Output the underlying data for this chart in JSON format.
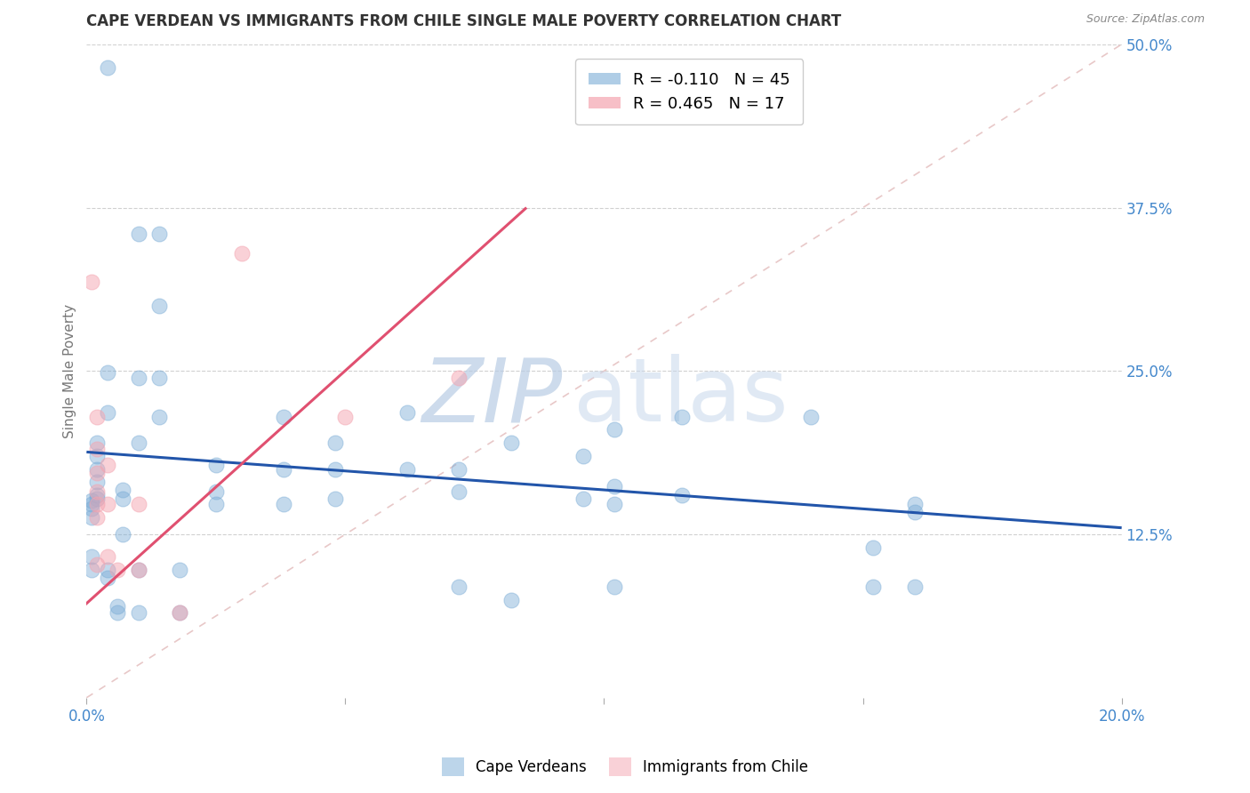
{
  "title": "CAPE VERDEAN VS IMMIGRANTS FROM CHILE SINGLE MALE POVERTY CORRELATION CHART",
  "source": "Source: ZipAtlas.com",
  "ylabel_label": "Single Male Poverty",
  "xlim": [
    0.0,
    0.2
  ],
  "ylim": [
    0.0,
    0.5
  ],
  "xtick_vals": [
    0.0,
    0.05,
    0.1,
    0.15,
    0.2
  ],
  "xtick_labels": [
    "0.0%",
    "",
    "",
    "",
    "20.0%"
  ],
  "ytick_vals": [
    0.125,
    0.25,
    0.375,
    0.5
  ],
  "ytick_labels": [
    "12.5%",
    "25.0%",
    "37.5%",
    "50.0%"
  ],
  "background_color": "#ffffff",
  "grid_color": "#cccccc",
  "diagonal_line_color": "#cccccc",
  "blue_scatter": [
    [
      0.004,
      0.482
    ],
    [
      0.01,
      0.355
    ],
    [
      0.01,
      0.245
    ],
    [
      0.01,
      0.195
    ],
    [
      0.014,
      0.355
    ],
    [
      0.014,
      0.245
    ],
    [
      0.014,
      0.3
    ],
    [
      0.014,
      0.215
    ],
    [
      0.004,
      0.249
    ],
    [
      0.004,
      0.218
    ],
    [
      0.002,
      0.195
    ],
    [
      0.002,
      0.185
    ],
    [
      0.002,
      0.175
    ],
    [
      0.002,
      0.165
    ],
    [
      0.002,
      0.155
    ],
    [
      0.002,
      0.152
    ],
    [
      0.001,
      0.151
    ],
    [
      0.001,
      0.148
    ],
    [
      0.001,
      0.145
    ],
    [
      0.001,
      0.138
    ],
    [
      0.001,
      0.108
    ],
    [
      0.001,
      0.098
    ],
    [
      0.004,
      0.098
    ],
    [
      0.004,
      0.092
    ],
    [
      0.006,
      0.07
    ],
    [
      0.006,
      0.065
    ],
    [
      0.007,
      0.159
    ],
    [
      0.007,
      0.152
    ],
    [
      0.007,
      0.125
    ],
    [
      0.01,
      0.098
    ],
    [
      0.01,
      0.065
    ],
    [
      0.018,
      0.098
    ],
    [
      0.018,
      0.065
    ],
    [
      0.025,
      0.178
    ],
    [
      0.025,
      0.158
    ],
    [
      0.025,
      0.148
    ],
    [
      0.038,
      0.215
    ],
    [
      0.038,
      0.175
    ],
    [
      0.038,
      0.148
    ],
    [
      0.048,
      0.195
    ],
    [
      0.048,
      0.175
    ],
    [
      0.048,
      0.152
    ],
    [
      0.062,
      0.218
    ],
    [
      0.062,
      0.175
    ],
    [
      0.072,
      0.175
    ],
    [
      0.072,
      0.158
    ],
    [
      0.072,
      0.085
    ],
    [
      0.082,
      0.195
    ],
    [
      0.082,
      0.075
    ],
    [
      0.096,
      0.185
    ],
    [
      0.096,
      0.152
    ],
    [
      0.102,
      0.205
    ],
    [
      0.102,
      0.162
    ],
    [
      0.102,
      0.148
    ],
    [
      0.102,
      0.085
    ],
    [
      0.115,
      0.215
    ],
    [
      0.115,
      0.155
    ],
    [
      0.14,
      0.215
    ],
    [
      0.152,
      0.115
    ],
    [
      0.152,
      0.085
    ],
    [
      0.16,
      0.148
    ],
    [
      0.16,
      0.142
    ],
    [
      0.16,
      0.085
    ]
  ],
  "pink_scatter": [
    [
      0.001,
      0.318
    ],
    [
      0.002,
      0.215
    ],
    [
      0.002,
      0.19
    ],
    [
      0.002,
      0.172
    ],
    [
      0.002,
      0.158
    ],
    [
      0.002,
      0.148
    ],
    [
      0.002,
      0.138
    ],
    [
      0.002,
      0.102
    ],
    [
      0.004,
      0.178
    ],
    [
      0.004,
      0.148
    ],
    [
      0.004,
      0.108
    ],
    [
      0.006,
      0.098
    ],
    [
      0.01,
      0.148
    ],
    [
      0.01,
      0.098
    ],
    [
      0.018,
      0.065
    ],
    [
      0.03,
      0.34
    ],
    [
      0.05,
      0.215
    ],
    [
      0.072,
      0.245
    ]
  ],
  "blue_R": -0.11,
  "blue_N": 45,
  "pink_R": 0.465,
  "pink_N": 17,
  "blue_line_x": [
    0.0,
    0.2
  ],
  "blue_line_y": [
    0.188,
    0.13
  ],
  "pink_line_x": [
    -0.002,
    0.085
  ],
  "pink_line_y": [
    0.065,
    0.375
  ],
  "blue_color": "#7aacd6",
  "pink_color": "#f4a4b0",
  "blue_line_color": "#2255aa",
  "pink_line_color": "#e05070",
  "axis_tick_color": "#4488cc"
}
